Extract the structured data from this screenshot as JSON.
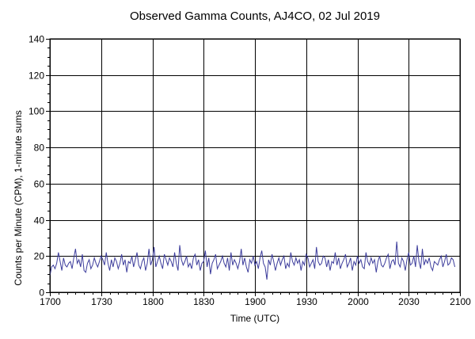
{
  "chart_data": {
    "type": "line",
    "title": "Observed Gamma Counts, AJ4CO, 02 Jul 2019",
    "xlabel": "Time (UTC)",
    "ylabel": "Counts per Minute (CPM), 1-minute sums",
    "x_ticks": [
      "1700",
      "1730",
      "1800",
      "1830",
      "1900",
      "1930",
      "2000",
      "2030",
      "2100"
    ],
    "y_ticks": [
      0,
      20,
      40,
      60,
      80,
      100,
      120,
      140
    ],
    "xlim_minutes": [
      0,
      240
    ],
    "ylim": [
      0,
      140
    ],
    "grid": true,
    "line_color": "#3d3d9c",
    "series": [
      {
        "x_start_minute": 0,
        "x_step_minutes": 1,
        "values": [
          9,
          14,
          15,
          13,
          16,
          22,
          17,
          12,
          19,
          15,
          14,
          16,
          17,
          13,
          19,
          24,
          16,
          18,
          14,
          21,
          12,
          11,
          16,
          18,
          13,
          15,
          19,
          16,
          14,
          17,
          20,
          18,
          15,
          22,
          16,
          12,
          18,
          14,
          19,
          17,
          13,
          16,
          21,
          15,
          18,
          11,
          17,
          16,
          20,
          14,
          18,
          22,
          15,
          13,
          17,
          19,
          12,
          16,
          24,
          15,
          18,
          25,
          14,
          17,
          20,
          16,
          13,
          21,
          18,
          15,
          19,
          17,
          14,
          22,
          16,
          12,
          26,
          18,
          15,
          17,
          20,
          14,
          16,
          13,
          19,
          21,
          15,
          18,
          12,
          16,
          17,
          23,
          14,
          19,
          10,
          16,
          18,
          21,
          13,
          15,
          17,
          20,
          16,
          14,
          19,
          12,
          22,
          15,
          18,
          16,
          13,
          17,
          24,
          15,
          19,
          14,
          11,
          18,
          16,
          20,
          15,
          17,
          13,
          19,
          23,
          16,
          14,
          7,
          18,
          15,
          21,
          17,
          12,
          16,
          19,
          15,
          18,
          20,
          13,
          16,
          14,
          22,
          17,
          15,
          19,
          16,
          18,
          12,
          17,
          15,
          21,
          19,
          14,
          16,
          18,
          13,
          25,
          17,
          15,
          16,
          20,
          19,
          14,
          18,
          12,
          17,
          16,
          22,
          15,
          19,
          13,
          16,
          18,
          21,
          14,
          16,
          19,
          12,
          17,
          15,
          20,
          16,
          18,
          14,
          13,
          22,
          17,
          15,
          19,
          16,
          18,
          11,
          17,
          20,
          15,
          14,
          16,
          19,
          21,
          13,
          17,
          18,
          15,
          28,
          16,
          14,
          19,
          17,
          12,
          18,
          22,
          15,
          16,
          20,
          14,
          26,
          17,
          13,
          24,
          15,
          18,
          16,
          19,
          14,
          12,
          17,
          16,
          15,
          18,
          20,
          14,
          17,
          21,
          15,
          16,
          19,
          18,
          14
        ]
      }
    ]
  }
}
